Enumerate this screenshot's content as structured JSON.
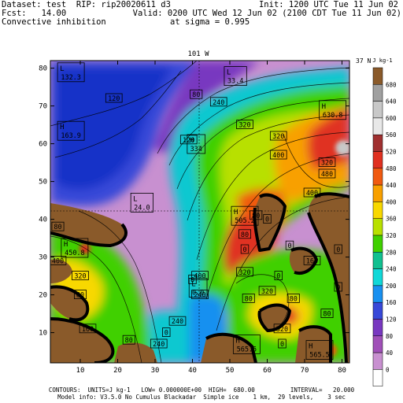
{
  "header": {
    "line1_left": "Dataset: test  RIP: rip20020611 d3",
    "line1_right": "Init: 1200 UTC Tue 11 Jun 02",
    "line2_left": "Fcst:   14.00",
    "line2_right": "Valid: 0200 UTC Wed 12 Jun 02 (2100 CDT Tue 11 Jun 02)",
    "line3_left": "Convective inhibition",
    "line3_right": "at sigma = 0.995"
  },
  "map": {
    "top_label": "101 W",
    "right_label": "37 N",
    "x_ticks": [
      "10",
      "20",
      "30",
      "40",
      "50",
      "60",
      "70",
      "80"
    ],
    "y_ticks": [
      "10",
      "20",
      "30",
      "40",
      "50",
      "60",
      "70",
      "80"
    ],
    "contour_labels": [
      {
        "text": "120",
        "x": 19,
        "y": 72
      },
      {
        "text": "240",
        "x": 47,
        "y": 71
      },
      {
        "text": "320",
        "x": 54,
        "y": 65
      },
      {
        "text": "120",
        "x": 39,
        "y": 61
      },
      {
        "text": "400",
        "x": 63,
        "y": 57
      },
      {
        "text": "320",
        "x": 63,
        "y": 62
      },
      {
        "text": "400",
        "x": 72,
        "y": 47
      },
      {
        "text": "480",
        "x": 76,
        "y": 52
      },
      {
        "text": "80",
        "x": 41,
        "y": 73
      },
      {
        "text": "160",
        "x": 72,
        "y": 29
      },
      {
        "text": "80",
        "x": 4,
        "y": 38
      },
      {
        "text": "400",
        "x": 4,
        "y": 29
      },
      {
        "text": "320",
        "x": 10,
        "y": 25
      },
      {
        "text": "80",
        "x": 10,
        "y": 20
      },
      {
        "text": "160",
        "x": 12,
        "y": 11
      },
      {
        "text": "400",
        "x": 42,
        "y": 25
      },
      {
        "text": "320",
        "x": 54,
        "y": 26
      },
      {
        "text": "240",
        "x": 42,
        "y": 20
      },
      {
        "text": "320",
        "x": 60,
        "y": 21
      },
      {
        "text": "80",
        "x": 67,
        "y": 19
      },
      {
        "text": "80",
        "x": 55,
        "y": 19
      },
      {
        "text": "0",
        "x": 66,
        "y": 33
      },
      {
        "text": "0",
        "x": 79,
        "y": 32
      },
      {
        "text": "0",
        "x": 63,
        "y": 25
      },
      {
        "text": "0",
        "x": 54,
        "y": 32
      },
      {
        "text": "80",
        "x": 54,
        "y": 36
      },
      {
        "text": "0",
        "x": 40,
        "y": 24
      },
      {
        "text": "0",
        "x": 33,
        "y": 10
      },
      {
        "text": "80",
        "x": 23,
        "y": 8
      },
      {
        "text": "0",
        "x": 64,
        "y": 7
      },
      {
        "text": "80",
        "x": 76,
        "y": 15
      },
      {
        "text": "0",
        "x": 79,
        "y": 22
      },
      {
        "text": "320",
        "x": 64,
        "y": 11
      },
      {
        "text": "240",
        "x": 36,
        "y": 13
      },
      {
        "text": "240",
        "x": 31,
        "y": 7
      },
      {
        "text": "0",
        "x": 60,
        "y": 40
      },
      {
        "text": "80",
        "x": 57,
        "y": 41
      },
      {
        "text": "320",
        "x": 76,
        "y": 55
      }
    ],
    "extrema": [
      {
        "kind": "L",
        "value": "132.3",
        "x": 7.5,
        "y": 78.5
      },
      {
        "kind": "L",
        "value": "33.4",
        "x": 51.5,
        "y": 77.5
      },
      {
        "kind": "H",
        "value": "163.9",
        "x": 7.5,
        "y": 63
      },
      {
        "kind": "H",
        "value": "334",
        "x": 41,
        "y": 59.5
      },
      {
        "kind": "L",
        "value": "24.0",
        "x": 26.5,
        "y": 44
      },
      {
        "kind": "H",
        "value": "630.8",
        "x": 77.5,
        "y": 68.5
      },
      {
        "kind": "H",
        "value": "450.8",
        "x": 8.5,
        "y": 32
      },
      {
        "kind": "H",
        "value": "505.2",
        "x": 54,
        "y": 40.5
      },
      {
        "kind": "L",
        "value": "0.0",
        "x": 41.5,
        "y": 21.5
      },
      {
        "kind": "H",
        "value": "565.5",
        "x": 54.5,
        "y": 6.5
      },
      {
        "kind": "H",
        "value": "565.5",
        "x": 74,
        "y": 5
      }
    ]
  },
  "legend": {
    "unit": "J kg-1",
    "levels": [
      "680",
      "640",
      "600",
      "560",
      "520",
      "480",
      "440",
      "400",
      "360",
      "320",
      "280",
      "240",
      "200",
      "160",
      "120",
      "80",
      "40",
      "0"
    ],
    "colors": {
      "above_680": "#8a5a2a",
      "c640": "#a0a0a0",
      "c600": "#c8c8c8",
      "c560": "#e8e8e8",
      "c520": "#a03030",
      "c480": "#e03020",
      "c440": "#f05a10",
      "c400": "#f8a000",
      "c360": "#f8d800",
      "c320": "#b8e000",
      "c280": "#40d000",
      "c240": "#10c090",
      "c200": "#10d8d8",
      "c160": "#1890f0",
      "c120": "#3848d8",
      "c80": "#7838c0",
      "c40": "#a050b8",
      "c0": "#c890d0",
      "below_0": "#ffffff"
    }
  },
  "footer": {
    "line1": "CONTOURS:  UNITS=J kg-1   LOW= 0.000000E+00  HIGH=  680.00          INTERVAL=   20.000",
    "line2": "Model info: V3.5.0 No Cumulus Blackadar  Simple ice    1 km,  29 levels,    3 sec"
  }
}
